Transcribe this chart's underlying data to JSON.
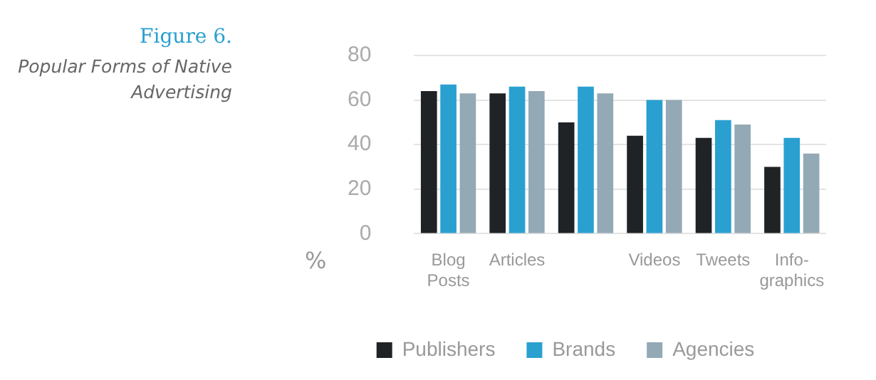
{
  "chart_data": {
    "type": "bar",
    "title": "Figure 6.",
    "subtitle": "Popular Forms of Native Advertising",
    "ylabel": "%",
    "categories": [
      "Blog Posts",
      "Articles",
      null,
      "Videos",
      "Tweets",
      "Info-graphics"
    ],
    "series": [
      {
        "name": "Publishers",
        "color": "#1f2326",
        "values": [
          64,
          63,
          50,
          44,
          43,
          30
        ]
      },
      {
        "name": "Brands",
        "color": "#29a0d0",
        "values": [
          67,
          66,
          66,
          60,
          51,
          43
        ]
      },
      {
        "name": "Agencies",
        "color": "#93a9b5",
        "values": [
          63,
          64,
          63,
          60,
          49,
          36
        ]
      }
    ],
    "ylim": [
      0,
      80
    ],
    "yticks": [
      0,
      20,
      40,
      60,
      80
    ],
    "grid": "y",
    "legend": "bottom"
  }
}
